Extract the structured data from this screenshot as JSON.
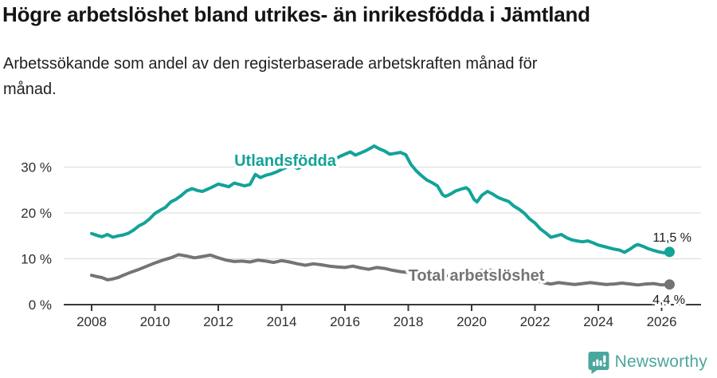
{
  "header": {
    "title": "Högre arbetslöshet bland utrikes- än inrikesfödda i Jämtland",
    "subtitle": "Arbetssökande som andel av den registerbaserade arbetskraften månad för månad."
  },
  "chart_data": {
    "type": "line",
    "title": "Högre arbetslöshet bland utrikes- än inrikesfödda i Jämtland",
    "subtitle": "Arbetssökande som andel av den registerbaserade arbetskraften månad för månad.",
    "unit": "%",
    "xlim": [
      2007.1,
      2027.25
    ],
    "ylim": [
      0,
      36.5
    ],
    "grid": "horizontal",
    "legend_position": "inline-labels",
    "x_ticks": [
      2008,
      2010,
      2012,
      2014,
      2016,
      2018,
      2020,
      2022,
      2024,
      2026
    ],
    "y_ticks": [
      {
        "value": 0,
        "label": "0 %"
      },
      {
        "value": 10,
        "label": "10 %"
      },
      {
        "value": 20,
        "label": "20 %"
      },
      {
        "value": 30,
        "label": "30 %"
      }
    ],
    "series": [
      {
        "key": "utlandsfodda",
        "name": "Utlandsfödda",
        "color": "#13A398",
        "end_label": "11,5 %",
        "end_value": 11.5,
        "points": [
          [
            2008.0,
            15.5
          ],
          [
            2008.17,
            15.1
          ],
          [
            2008.33,
            14.8
          ],
          [
            2008.5,
            15.3
          ],
          [
            2008.67,
            14.7
          ],
          [
            2008.83,
            15.0
          ],
          [
            2009.0,
            15.2
          ],
          [
            2009.17,
            15.6
          ],
          [
            2009.33,
            16.3
          ],
          [
            2009.5,
            17.2
          ],
          [
            2009.67,
            17.8
          ],
          [
            2009.83,
            18.7
          ],
          [
            2010.0,
            19.9
          ],
          [
            2010.17,
            20.6
          ],
          [
            2010.33,
            21.2
          ],
          [
            2010.5,
            22.4
          ],
          [
            2010.67,
            23.0
          ],
          [
            2010.83,
            23.8
          ],
          [
            2011.0,
            24.8
          ],
          [
            2011.17,
            25.3
          ],
          [
            2011.33,
            24.9
          ],
          [
            2011.5,
            24.7
          ],
          [
            2011.67,
            25.2
          ],
          [
            2011.83,
            25.7
          ],
          [
            2012.0,
            26.3
          ],
          [
            2012.17,
            26.0
          ],
          [
            2012.33,
            25.7
          ],
          [
            2012.5,
            26.5
          ],
          [
            2012.67,
            26.2
          ],
          [
            2012.83,
            25.9
          ],
          [
            2013.0,
            26.2
          ],
          [
            2013.17,
            28.4
          ],
          [
            2013.33,
            27.7
          ],
          [
            2013.5,
            28.2
          ],
          [
            2013.67,
            28.5
          ],
          [
            2013.83,
            28.9
          ],
          [
            2014.0,
            29.5
          ],
          [
            2014.17,
            30.0
          ],
          [
            2014.33,
            30.2
          ],
          [
            2014.5,
            29.7
          ],
          [
            2014.67,
            30.1
          ],
          [
            2014.83,
            30.5
          ],
          [
            2015.0,
            30.8
          ],
          [
            2015.17,
            30.5
          ],
          [
            2015.33,
            30.2
          ],
          [
            2015.5,
            31.1
          ],
          [
            2015.67,
            31.6
          ],
          [
            2015.83,
            32.3
          ],
          [
            2016.0,
            32.8
          ],
          [
            2016.17,
            33.3
          ],
          [
            2016.33,
            32.6
          ],
          [
            2016.5,
            33.1
          ],
          [
            2016.67,
            33.6
          ],
          [
            2016.83,
            34.2
          ],
          [
            2016.92,
            34.6
          ],
          [
            2017.08,
            34.0
          ],
          [
            2017.25,
            33.5
          ],
          [
            2017.42,
            32.8
          ],
          [
            2017.58,
            33.0
          ],
          [
            2017.75,
            33.2
          ],
          [
            2017.92,
            32.7
          ],
          [
            2018.08,
            30.6
          ],
          [
            2018.25,
            29.2
          ],
          [
            2018.42,
            28.1
          ],
          [
            2018.58,
            27.2
          ],
          [
            2018.75,
            26.6
          ],
          [
            2018.92,
            25.9
          ],
          [
            2019.08,
            24.0
          ],
          [
            2019.17,
            23.6
          ],
          [
            2019.33,
            24.1
          ],
          [
            2019.5,
            24.8
          ],
          [
            2019.67,
            25.2
          ],
          [
            2019.83,
            25.5
          ],
          [
            2019.92,
            25.0
          ],
          [
            2020.08,
            22.9
          ],
          [
            2020.17,
            22.4
          ],
          [
            2020.33,
            23.9
          ],
          [
            2020.5,
            24.7
          ],
          [
            2020.67,
            24.1
          ],
          [
            2020.83,
            23.4
          ],
          [
            2021.0,
            22.9
          ],
          [
            2021.17,
            22.5
          ],
          [
            2021.33,
            21.5
          ],
          [
            2021.5,
            20.8
          ],
          [
            2021.67,
            19.9
          ],
          [
            2021.83,
            18.7
          ],
          [
            2022.0,
            17.8
          ],
          [
            2022.17,
            16.5
          ],
          [
            2022.33,
            15.7
          ],
          [
            2022.5,
            14.7
          ],
          [
            2022.67,
            15.0
          ],
          [
            2022.83,
            15.3
          ],
          [
            2023.0,
            14.6
          ],
          [
            2023.17,
            14.1
          ],
          [
            2023.33,
            13.9
          ],
          [
            2023.5,
            13.7
          ],
          [
            2023.67,
            13.9
          ],
          [
            2023.83,
            13.5
          ],
          [
            2024.0,
            13.0
          ],
          [
            2024.17,
            12.7
          ],
          [
            2024.33,
            12.4
          ],
          [
            2024.5,
            12.1
          ],
          [
            2024.67,
            11.9
          ],
          [
            2024.83,
            11.4
          ],
          [
            2025.0,
            12.1
          ],
          [
            2025.17,
            12.9
          ],
          [
            2025.25,
            13.1
          ],
          [
            2025.42,
            12.7
          ],
          [
            2025.58,
            12.2
          ],
          [
            2025.75,
            11.8
          ],
          [
            2025.92,
            11.5
          ],
          [
            2026.08,
            11.3
          ],
          [
            2026.25,
            11.5
          ]
        ]
      },
      {
        "key": "total-arbetsloshet",
        "name": "Total arbetslöshet",
        "color": "#747474",
        "end_label": "4,4 %",
        "end_value": 4.4,
        "points": [
          [
            2008.0,
            6.4
          ],
          [
            2008.17,
            6.1
          ],
          [
            2008.33,
            5.9
          ],
          [
            2008.5,
            5.4
          ],
          [
            2008.67,
            5.6
          ],
          [
            2008.83,
            5.9
          ],
          [
            2009.0,
            6.4
          ],
          [
            2009.25,
            7.1
          ],
          [
            2009.5,
            7.7
          ],
          [
            2009.75,
            8.4
          ],
          [
            2010.0,
            9.1
          ],
          [
            2010.25,
            9.7
          ],
          [
            2010.5,
            10.2
          ],
          [
            2010.75,
            10.9
          ],
          [
            2011.0,
            10.6
          ],
          [
            2011.25,
            10.2
          ],
          [
            2011.5,
            10.5
          ],
          [
            2011.75,
            10.8
          ],
          [
            2012.0,
            10.2
          ],
          [
            2012.25,
            9.7
          ],
          [
            2012.5,
            9.4
          ],
          [
            2012.75,
            9.5
          ],
          [
            2013.0,
            9.3
          ],
          [
            2013.25,
            9.7
          ],
          [
            2013.5,
            9.5
          ],
          [
            2013.75,
            9.2
          ],
          [
            2014.0,
            9.6
          ],
          [
            2014.25,
            9.3
          ],
          [
            2014.5,
            8.9
          ],
          [
            2014.75,
            8.6
          ],
          [
            2015.0,
            8.9
          ],
          [
            2015.25,
            8.7
          ],
          [
            2015.5,
            8.4
          ],
          [
            2015.75,
            8.2
          ],
          [
            2016.0,
            8.1
          ],
          [
            2016.25,
            8.4
          ],
          [
            2016.5,
            8.0
          ],
          [
            2016.75,
            7.7
          ],
          [
            2017.0,
            8.1
          ],
          [
            2017.25,
            7.9
          ],
          [
            2017.5,
            7.5
          ],
          [
            2017.75,
            7.2
          ],
          [
            2018.0,
            7.0
          ],
          [
            2018.25,
            6.8
          ],
          [
            2018.5,
            6.6
          ],
          [
            2018.75,
            6.5
          ],
          [
            2019.0,
            6.4
          ],
          [
            2019.25,
            6.2
          ],
          [
            2019.5,
            6.3
          ],
          [
            2019.75,
            6.5
          ],
          [
            2020.0,
            6.7
          ],
          [
            2020.25,
            7.4
          ],
          [
            2020.5,
            7.6
          ],
          [
            2020.75,
            7.3
          ],
          [
            2021.0,
            7.0
          ],
          [
            2021.25,
            6.6
          ],
          [
            2021.5,
            6.1
          ],
          [
            2021.75,
            5.7
          ],
          [
            2022.0,
            5.3
          ],
          [
            2022.25,
            4.9
          ],
          [
            2022.33,
            4.7
          ],
          [
            2022.5,
            4.5
          ],
          [
            2022.75,
            4.8
          ],
          [
            2023.0,
            4.6
          ],
          [
            2023.25,
            4.4
          ],
          [
            2023.5,
            4.6
          ],
          [
            2023.75,
            4.8
          ],
          [
            2024.0,
            4.6
          ],
          [
            2024.25,
            4.4
          ],
          [
            2024.5,
            4.5
          ],
          [
            2024.75,
            4.7
          ],
          [
            2025.0,
            4.5
          ],
          [
            2025.25,
            4.3
          ],
          [
            2025.5,
            4.5
          ],
          [
            2025.75,
            4.6
          ],
          [
            2026.0,
            4.3
          ],
          [
            2026.25,
            4.4
          ]
        ]
      }
    ]
  },
  "footer": {
    "brand": "Newsworthy"
  },
  "colors": {
    "accent_teal": "#13A398",
    "series_gray": "#747474",
    "brand_teal": "#4BA69E",
    "grid": "#DADADA",
    "axis": "#383838",
    "text": "#1A1A1A"
  }
}
